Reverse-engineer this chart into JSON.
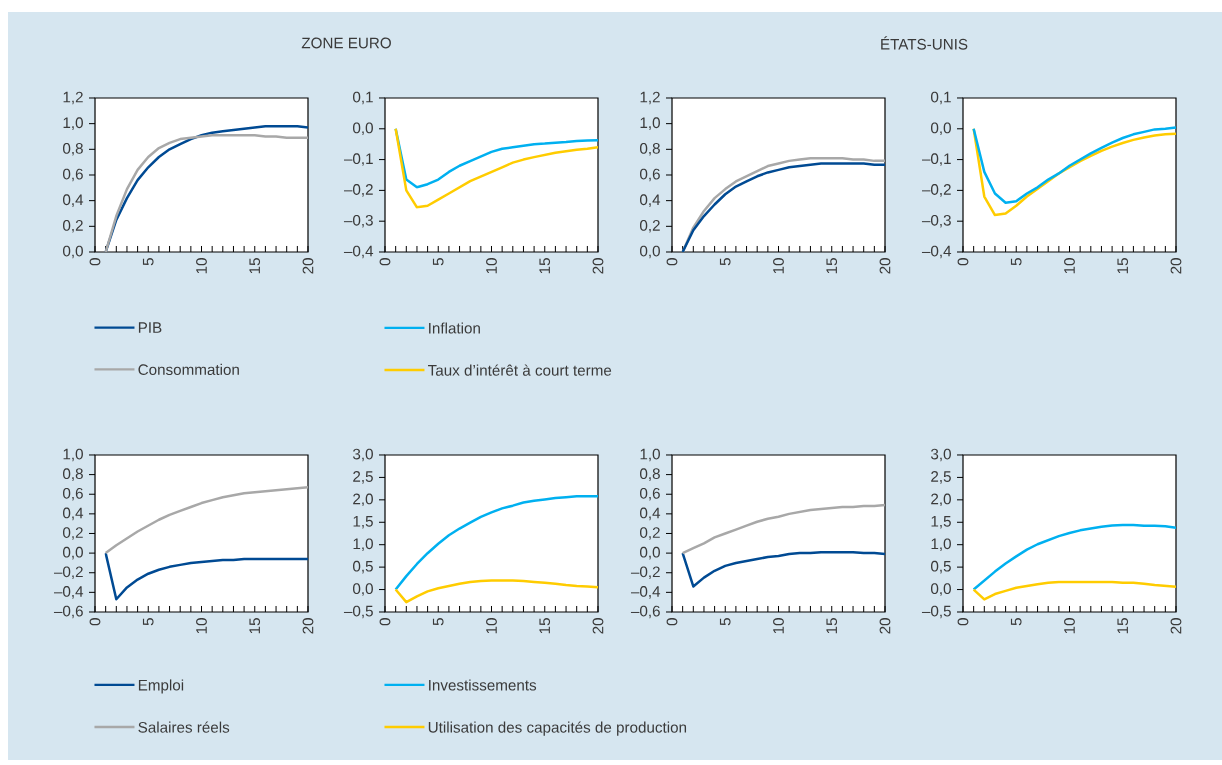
{
  "chart_data": [
    {
      "type": "line",
      "title": "ZONE EURO",
      "x": [
        1,
        2,
        3,
        4,
        5,
        6,
        7,
        8,
        9,
        10,
        11,
        12,
        13,
        14,
        15,
        16,
        17,
        18,
        19,
        20
      ],
      "xlim": [
        0,
        20
      ],
      "xticks": [
        0,
        5,
        10,
        15,
        20
      ],
      "ylim": [
        0,
        1.2
      ],
      "yticks": [
        {
          "value": 0,
          "label": "0,0"
        },
        {
          "value": 0.2,
          "label": "0,2"
        },
        {
          "value": 0.4,
          "label": "0,4"
        },
        {
          "value": 0.6,
          "label": "0,6"
        },
        {
          "value": 0.8,
          "label": "0,8"
        },
        {
          "value": 1.0,
          "label": "1,0"
        },
        {
          "value": 1.2,
          "label": "1,2"
        }
      ],
      "legend": "bottom",
      "series": [
        {
          "name": "PIB",
          "color": "#004a93",
          "values": [
            0,
            0.25,
            0.42,
            0.56,
            0.66,
            0.74,
            0.8,
            0.84,
            0.88,
            0.91,
            0.93,
            0.94,
            0.95,
            0.96,
            0.97,
            0.98,
            0.98,
            0.98,
            0.98,
            0.97
          ]
        },
        {
          "name": "Consommation",
          "color": "#a8a8a8",
          "values": [
            0,
            0.28,
            0.49,
            0.64,
            0.74,
            0.81,
            0.85,
            0.88,
            0.89,
            0.9,
            0.91,
            0.91,
            0.91,
            0.91,
            0.91,
            0.9,
            0.9,
            0.89,
            0.89,
            0.89
          ]
        }
      ]
    },
    {
      "type": "line",
      "x": [
        1,
        2,
        3,
        4,
        5,
        6,
        7,
        8,
        9,
        10,
        11,
        12,
        13,
        14,
        15,
        16,
        17,
        18,
        19,
        20
      ],
      "xlim": [
        0,
        20
      ],
      "xticks": [
        0,
        5,
        10,
        15,
        20
      ],
      "ylim": [
        -0.4,
        0.1
      ],
      "yticks": [
        {
          "value": -0.4,
          "label": "–0,4"
        },
        {
          "value": -0.3,
          "label": "–0,3"
        },
        {
          "value": -0.2,
          "label": "–0,2"
        },
        {
          "value": -0.1,
          "label": "–0,1"
        },
        {
          "value": 0,
          "label": "0,0"
        },
        {
          "value": 0.1,
          "label": "0,1"
        }
      ],
      "legend": "bottom",
      "series": [
        {
          "name": "Inflation",
          "color": "#00b0f0",
          "values": [
            0,
            -0.165,
            -0.19,
            -0.18,
            -0.165,
            -0.14,
            -0.12,
            -0.105,
            -0.09,
            -0.075,
            -0.065,
            -0.06,
            -0.055,
            -0.05,
            -0.048,
            -0.045,
            -0.043,
            -0.04,
            -0.038,
            -0.037
          ]
        },
        {
          "name": "Taux d’intérêt à court terme",
          "color": "#ffcc00",
          "values": [
            0,
            -0.2,
            -0.255,
            -0.25,
            -0.23,
            -0.21,
            -0.19,
            -0.17,
            -0.155,
            -0.14,
            -0.125,
            -0.11,
            -0.1,
            -0.092,
            -0.085,
            -0.078,
            -0.073,
            -0.068,
            -0.065,
            -0.06
          ]
        }
      ]
    },
    {
      "type": "line",
      "title": "ÉTATS-UNIS",
      "x": [
        1,
        2,
        3,
        4,
        5,
        6,
        7,
        8,
        9,
        10,
        11,
        12,
        13,
        14,
        15,
        16,
        17,
        18,
        19,
        20
      ],
      "xlim": [
        0,
        20
      ],
      "xticks": [
        0,
        5,
        10,
        15,
        20
      ],
      "ylim": [
        0,
        1.2
      ],
      "yticks": [
        {
          "value": 0,
          "label": "0,0"
        },
        {
          "value": 0.2,
          "label": "0,2"
        },
        {
          "value": 0.4,
          "label": "0,4"
        },
        {
          "value": 0.6,
          "label": "0,6"
        },
        {
          "value": 0.8,
          "label": "0,8"
        },
        {
          "value": 1.0,
          "label": "1,0"
        },
        {
          "value": 1.2,
          "label": "1,2"
        }
      ],
      "series": [
        {
          "color": "#a8a8a8",
          "values": [
            0,
            0.19,
            0.32,
            0.42,
            0.49,
            0.55,
            0.59,
            0.63,
            0.67,
            0.69,
            0.71,
            0.72,
            0.73,
            0.73,
            0.73,
            0.73,
            0.72,
            0.72,
            0.71,
            0.71
          ]
        },
        {
          "color": "#004a93",
          "values": [
            0,
            0.17,
            0.28,
            0.37,
            0.45,
            0.51,
            0.55,
            0.59,
            0.62,
            0.64,
            0.66,
            0.67,
            0.68,
            0.69,
            0.69,
            0.69,
            0.69,
            0.69,
            0.68,
            0.68
          ]
        }
      ]
    },
    {
      "type": "line",
      "x": [
        1,
        2,
        3,
        4,
        5,
        6,
        7,
        8,
        9,
        10,
        11,
        12,
        13,
        14,
        15,
        16,
        17,
        18,
        19,
        20
      ],
      "xlim": [
        0,
        20
      ],
      "xticks": [
        0,
        5,
        10,
        15,
        20
      ],
      "ylim": [
        -0.4,
        0.1
      ],
      "yticks": [
        {
          "value": -0.4,
          "label": "–0,4"
        },
        {
          "value": -0.3,
          "label": "–0,3"
        },
        {
          "value": -0.2,
          "label": "–0,2"
        },
        {
          "value": -0.1,
          "label": "–0,1"
        },
        {
          "value": 0,
          "label": "0,0"
        },
        {
          "value": 0.1,
          "label": "0,1"
        }
      ],
      "series": [
        {
          "color": "#ffcc00",
          "values": [
            0,
            -0.22,
            -0.28,
            -0.275,
            -0.25,
            -0.22,
            -0.195,
            -0.17,
            -0.145,
            -0.125,
            -0.105,
            -0.088,
            -0.072,
            -0.058,
            -0.046,
            -0.036,
            -0.028,
            -0.022,
            -0.018,
            -0.016
          ]
        },
        {
          "color": "#00b0f0",
          "values": [
            0,
            -0.14,
            -0.21,
            -0.24,
            -0.235,
            -0.21,
            -0.19,
            -0.165,
            -0.145,
            -0.12,
            -0.1,
            -0.08,
            -0.062,
            -0.045,
            -0.03,
            -0.018,
            -0.01,
            -0.002,
            0,
            0.004
          ]
        }
      ]
    },
    {
      "type": "line",
      "x": [
        1,
        2,
        3,
        4,
        5,
        6,
        7,
        8,
        9,
        10,
        11,
        12,
        13,
        14,
        15,
        16,
        17,
        18,
        19,
        20
      ],
      "xlim": [
        0,
        20
      ],
      "xticks": [
        0,
        5,
        10,
        15,
        20
      ],
      "ylim": [
        -0.6,
        1.0
      ],
      "yticks": [
        {
          "value": -0.6,
          "label": "–0,6"
        },
        {
          "value": -0.4,
          "label": "–0,4"
        },
        {
          "value": -0.2,
          "label": "–0,2"
        },
        {
          "value": 0,
          "label": "0,0"
        },
        {
          "value": 0.2,
          "label": "0,2"
        },
        {
          "value": 0.4,
          "label": "0,4"
        },
        {
          "value": 0.6,
          "label": "0,6"
        },
        {
          "value": 0.8,
          "label": "0,8"
        },
        {
          "value": 1.0,
          "label": "1,0"
        }
      ],
      "legend": "bottom",
      "series": [
        {
          "name": "Emploi",
          "color": "#004a93",
          "values": [
            0,
            -0.47,
            -0.35,
            -0.27,
            -0.21,
            -0.17,
            -0.14,
            -0.12,
            -0.1,
            -0.09,
            -0.08,
            -0.07,
            -0.07,
            -0.06,
            -0.06,
            -0.06,
            -0.06,
            -0.06,
            -0.06,
            -0.06
          ]
        },
        {
          "name": "Salaires réels",
          "color": "#a8a8a8",
          "values": [
            0,
            0.08,
            0.15,
            0.22,
            0.28,
            0.34,
            0.39,
            0.43,
            0.47,
            0.51,
            0.54,
            0.57,
            0.59,
            0.61,
            0.62,
            0.63,
            0.64,
            0.65,
            0.66,
            0.67
          ]
        }
      ]
    },
    {
      "type": "line",
      "x": [
        1,
        2,
        3,
        4,
        5,
        6,
        7,
        8,
        9,
        10,
        11,
        12,
        13,
        14,
        15,
        16,
        17,
        18,
        19,
        20
      ],
      "xlim": [
        0,
        20
      ],
      "xticks": [
        0,
        5,
        10,
        15,
        20
      ],
      "ylim": [
        -0.5,
        3.0
      ],
      "yticks": [
        {
          "value": -0.5,
          "label": "–0,5"
        },
        {
          "value": 0,
          "label": "0,0"
        },
        {
          "value": 0.5,
          "label": "0,5"
        },
        {
          "value": 1.0,
          "label": "1,0"
        },
        {
          "value": 1.5,
          "label": "1,5"
        },
        {
          "value": 2.0,
          "label": "2,0"
        },
        {
          "value": 2.5,
          "label": "2,5"
        },
        {
          "value": 3.0,
          "label": "3,0"
        }
      ],
      "legend": "bottom",
      "series": [
        {
          "name": "Investissements",
          "color": "#00b0f0",
          "values": [
            0,
            0.3,
            0.57,
            0.81,
            1.02,
            1.21,
            1.36,
            1.49,
            1.62,
            1.72,
            1.81,
            1.87,
            1.94,
            1.98,
            2.01,
            2.04,
            2.06,
            2.08,
            2.08,
            2.08
          ]
        },
        {
          "name": "Utilisation des capacités de production",
          "color": "#ffcc00",
          "values": [
            0,
            -0.28,
            -0.15,
            -0.04,
            0.03,
            0.08,
            0.13,
            0.17,
            0.19,
            0.2,
            0.2,
            0.2,
            0.19,
            0.17,
            0.15,
            0.13,
            0.1,
            0.08,
            0.07,
            0.05
          ]
        }
      ]
    },
    {
      "type": "line",
      "x": [
        1,
        2,
        3,
        4,
        5,
        6,
        7,
        8,
        9,
        10,
        11,
        12,
        13,
        14,
        15,
        16,
        17,
        18,
        19,
        20
      ],
      "xlim": [
        0,
        20
      ],
      "xticks": [
        0,
        5,
        10,
        15,
        20
      ],
      "ylim": [
        -0.6,
        1.0
      ],
      "yticks": [
        {
          "value": -0.6,
          "label": "–0,6"
        },
        {
          "value": -0.4,
          "label": "–0,4"
        },
        {
          "value": -0.2,
          "label": "–0,2"
        },
        {
          "value": 0,
          "label": "0,0"
        },
        {
          "value": 0.2,
          "label": "0,2"
        },
        {
          "value": 0.4,
          "label": "0,4"
        },
        {
          "value": 0.6,
          "label": "0,6"
        },
        {
          "value": 0.8,
          "label": "0,8"
        },
        {
          "value": 1.0,
          "label": "1,0"
        }
      ],
      "series": [
        {
          "color": "#004a93",
          "values": [
            0,
            -0.34,
            -0.25,
            -0.18,
            -0.13,
            -0.1,
            -0.08,
            -0.06,
            -0.04,
            -0.03,
            -0.01,
            0,
            0,
            0.01,
            0.01,
            0.01,
            0.01,
            0,
            0,
            -0.01
          ]
        },
        {
          "color": "#a8a8a8",
          "values": [
            0,
            0.05,
            0.1,
            0.16,
            0.2,
            0.24,
            0.28,
            0.32,
            0.35,
            0.37,
            0.4,
            0.42,
            0.44,
            0.45,
            0.46,
            0.47,
            0.47,
            0.48,
            0.48,
            0.49
          ]
        }
      ]
    },
    {
      "type": "line",
      "x": [
        1,
        2,
        3,
        4,
        5,
        6,
        7,
        8,
        9,
        10,
        11,
        12,
        13,
        14,
        15,
        16,
        17,
        18,
        19,
        20
      ],
      "xlim": [
        0,
        20
      ],
      "xticks": [
        0,
        5,
        10,
        15,
        20
      ],
      "ylim": [
        -0.5,
        3.0
      ],
      "yticks": [
        {
          "value": -0.5,
          "label": "–0,5"
        },
        {
          "value": 0,
          "label": "0,0"
        },
        {
          "value": 0.5,
          "label": "0,5"
        },
        {
          "value": 1.0,
          "label": "1,0"
        },
        {
          "value": 1.5,
          "label": "1,5"
        },
        {
          "value": 2.0,
          "label": "2,0"
        },
        {
          "value": 2.5,
          "label": "2,5"
        },
        {
          "value": 3.0,
          "label": "3,0"
        }
      ],
      "series": [
        {
          "color": "#00b0f0",
          "values": [
            0,
            0.2,
            0.4,
            0.58,
            0.74,
            0.89,
            1.01,
            1.1,
            1.19,
            1.26,
            1.32,
            1.36,
            1.4,
            1.43,
            1.44,
            1.44,
            1.42,
            1.42,
            1.41,
            1.38
          ]
        },
        {
          "color": "#ffcc00",
          "values": [
            0,
            -0.22,
            -0.1,
            -0.03,
            0.04,
            0.08,
            0.12,
            0.15,
            0.17,
            0.17,
            0.17,
            0.17,
            0.17,
            0.17,
            0.15,
            0.15,
            0.13,
            0.1,
            0.08,
            0.06
          ]
        }
      ]
    }
  ]
}
